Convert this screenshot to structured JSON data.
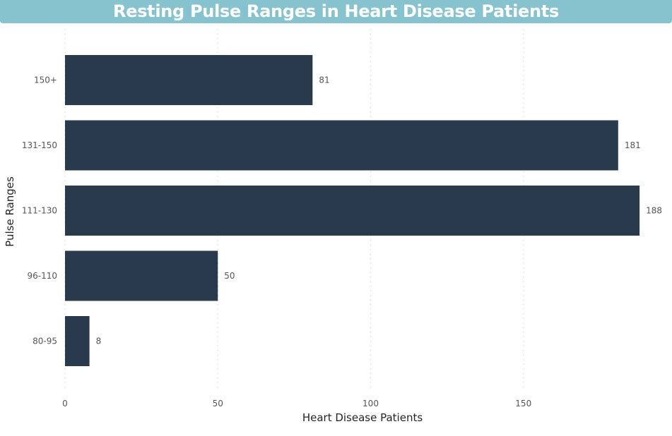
{
  "chart_data": {
    "type": "bar",
    "orientation": "horizontal",
    "title": "Resting Pulse Ranges in Heart Disease Patients",
    "categories": [
      "150+",
      "131-150",
      "111-130",
      "96-110",
      "80-95"
    ],
    "values": [
      81,
      181,
      188,
      50,
      8
    ],
    "xlabel": "Heart Disease Patients",
    "ylabel": "Pulse Ranges",
    "xlim": [
      0,
      190
    ],
    "xticks": [
      "0",
      "50",
      "100",
      "150"
    ],
    "grid": true,
    "legend": "none"
  },
  "colors": {
    "title_bar": "#87c3cf",
    "bar": "#2a3a4d",
    "grid": "#d6d6d6"
  }
}
